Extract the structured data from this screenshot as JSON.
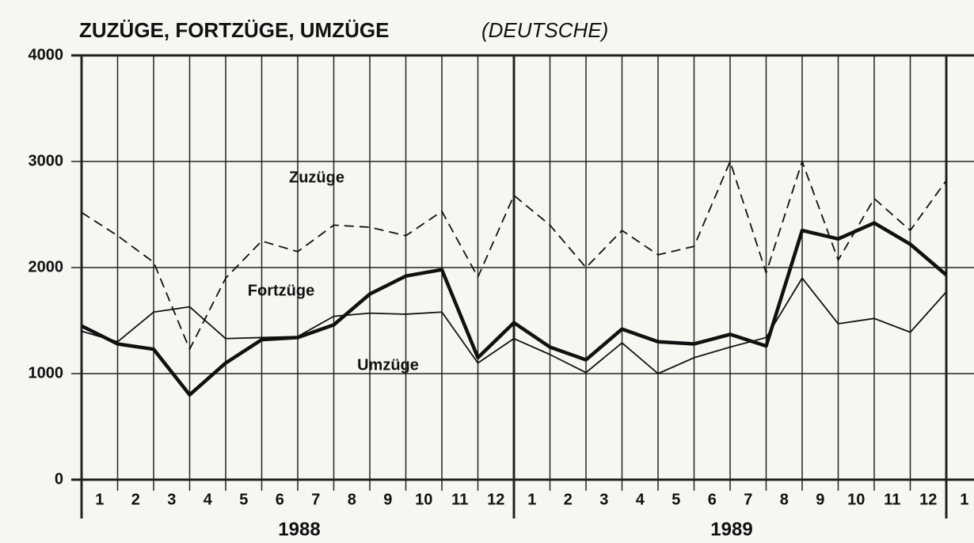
{
  "chart_data": {
    "type": "line",
    "title": "ZUZÜGE, FORTZÜGE, UMZÜGE",
    "subtitle": "(DEUTSCHE)",
    "categories": [
      "1",
      "2",
      "3",
      "4",
      "5",
      "6",
      "7",
      "8",
      "9",
      "10",
      "11",
      "12",
      "1",
      "2",
      "3",
      "4",
      "5",
      "6",
      "7",
      "8",
      "9",
      "10",
      "11",
      "12",
      "1"
    ],
    "years": [
      "1988",
      "1989"
    ],
    "ylim": [
      0,
      4000
    ],
    "yticks": [
      0,
      1000,
      2000,
      3000,
      4000
    ],
    "grid": true,
    "series": [
      {
        "name": "Zuzüge",
        "color": "#111111",
        "style": "thick",
        "values": [
          1450,
          1280,
          1230,
          800,
          1100,
          1320,
          1340,
          1460,
          1750,
          1920,
          1980,
          1150,
          1480,
          1250,
          1130,
          1420,
          1300,
          1280,
          1370,
          1260,
          2350,
          2270,
          2420,
          2220,
          1930
        ]
      },
      {
        "name": "Fortzüge",
        "color": "#111111",
        "style": "thin",
        "values": [
          1400,
          1300,
          1580,
          1630,
          1330,
          1340,
          1350,
          1540,
          1570,
          1560,
          1580,
          1100,
          1330,
          1180,
          1010,
          1290,
          1000,
          1150,
          1250,
          1340,
          1900,
          1470,
          1520,
          1390,
          1770
        ]
      },
      {
        "name": "Umzüge",
        "color": "#111111",
        "style": "dashed",
        "values": [
          2520,
          2300,
          2050,
          1230,
          1900,
          2250,
          2150,
          2400,
          2380,
          2300,
          2530,
          1910,
          2680,
          2400,
          2000,
          2350,
          2120,
          2200,
          3000,
          1950,
          3000,
          2070,
          2650,
          2350,
          2820
        ]
      }
    ]
  }
}
